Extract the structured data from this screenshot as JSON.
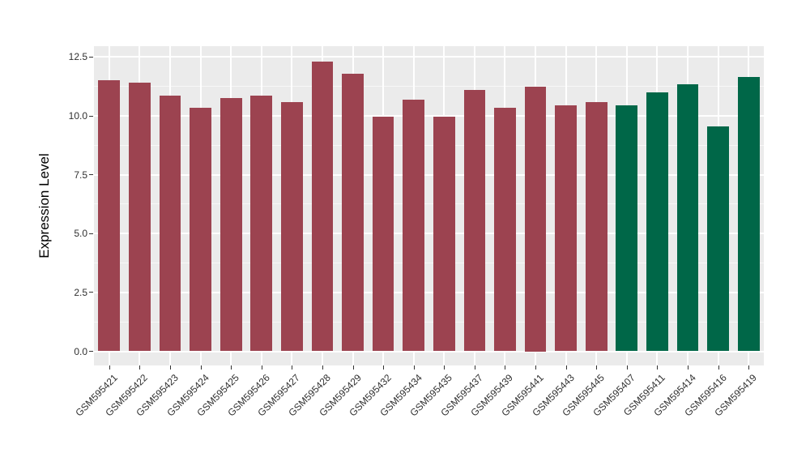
{
  "figure": {
    "background": "#FFFFFF"
  },
  "chart_data": {
    "type": "bar",
    "title": "",
    "xlabel": "",
    "ylabel": "Expression Level",
    "legend_position": "none",
    "grid": true,
    "panel_bg": "#EBEBEB",
    "grid_color": "#FFFFFF",
    "axis_text_color": "#303030",
    "ylim": [
      0,
      12.5
    ],
    "yticks": [
      {
        "value": 0.0,
        "label": "0.0"
      },
      {
        "value": 2.5,
        "label": "2.5"
      },
      {
        "value": 5.0,
        "label": "5.0"
      },
      {
        "value": 7.5,
        "label": "7.5"
      },
      {
        "value": 10.0,
        "label": "10.0"
      },
      {
        "value": 12.5,
        "label": "12.5"
      }
    ],
    "yminor": [
      1.25,
      3.75,
      6.25,
      8.75,
      11.25
    ],
    "group_colors": {
      "red": "#9C4350",
      "green": "#006748"
    },
    "bars": [
      {
        "label": "GSM595421",
        "value": 11.5,
        "color": "#9C4350"
      },
      {
        "label": "GSM595422",
        "value": 11.4,
        "color": "#9C4350"
      },
      {
        "label": "GSM595423",
        "value": 10.85,
        "color": "#9C4350"
      },
      {
        "label": "GSM595424",
        "value": 10.35,
        "color": "#9C4350"
      },
      {
        "label": "GSM595425",
        "value": 10.75,
        "color": "#9C4350"
      },
      {
        "label": "GSM595426",
        "value": 10.85,
        "color": "#9C4350"
      },
      {
        "label": "GSM595427",
        "value": 10.6,
        "color": "#9C4350"
      },
      {
        "label": "GSM595428",
        "value": 12.3,
        "color": "#9C4350"
      },
      {
        "label": "GSM595429",
        "value": 11.8,
        "color": "#9C4350"
      },
      {
        "label": "GSM595432",
        "value": 9.95,
        "color": "#9C4350"
      },
      {
        "label": "GSM595434",
        "value": 10.7,
        "color": "#9C4350"
      },
      {
        "label": "GSM595435",
        "value": 9.95,
        "color": "#9C4350"
      },
      {
        "label": "GSM595437",
        "value": 11.1,
        "color": "#9C4350"
      },
      {
        "label": "GSM595439",
        "value": 10.35,
        "color": "#9C4350"
      },
      {
        "label": "GSM595441",
        "value": 11.25,
        "color": "#9C4350"
      },
      {
        "label": "GSM595443",
        "value": 10.45,
        "color": "#9C4350"
      },
      {
        "label": "GSM595445",
        "value": 10.6,
        "color": "#9C4350"
      },
      {
        "label": "GSM595407",
        "value": 10.45,
        "color": "#006748"
      },
      {
        "label": "GSM595411",
        "value": 11.0,
        "color": "#006748"
      },
      {
        "label": "GSM595414",
        "value": 11.35,
        "color": "#006748"
      },
      {
        "label": "GSM595416",
        "value": 9.55,
        "color": "#006748"
      },
      {
        "label": "GSM595419",
        "value": 11.65,
        "color": "#006748"
      }
    ]
  }
}
